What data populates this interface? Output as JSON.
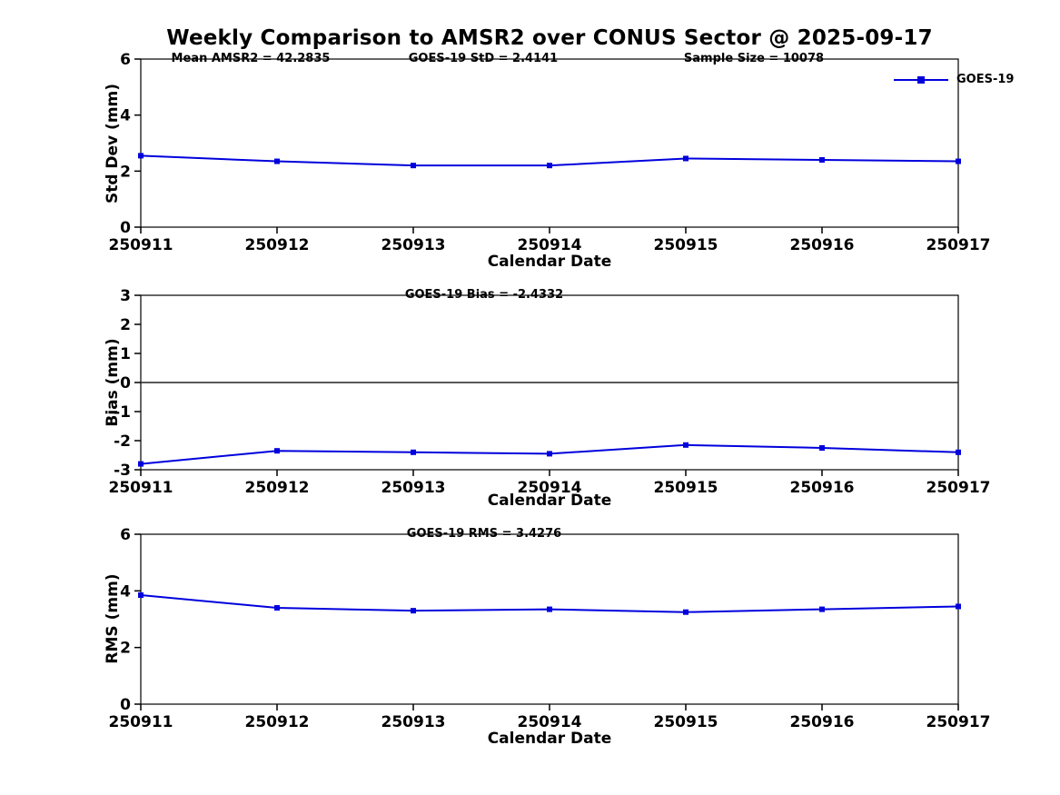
{
  "title": "Weekly Comparison to AMSR2 over CONUS Sector @ 2025-09-17",
  "accent_color": "#0000dd",
  "chart_data": [
    {
      "type": "line",
      "panel": "std-dev",
      "annotations": [
        "Mean AMSR2 = 42.2835",
        "GOES-19 StD = 2.4141",
        "Sample Size = 10078"
      ],
      "categories": [
        "250911",
        "250912",
        "250913",
        "250914",
        "250915",
        "250916",
        "250917"
      ],
      "series": [
        {
          "name": "GOES-19",
          "color": "#0000dd",
          "values": [
            2.55,
            2.35,
            2.2,
            2.2,
            2.45,
            2.4,
            2.35
          ]
        }
      ],
      "xlabel": "Calendar Date",
      "ylabel": "Std Dev (mm)",
      "ylim": [
        0,
        6
      ],
      "yticks": [
        0,
        2,
        4,
        6
      ],
      "grid": false,
      "zero_line": false,
      "legend": {
        "label": "GOES-19",
        "position": "top-right"
      }
    },
    {
      "type": "line",
      "panel": "bias",
      "annotations": [
        "GOES-19 Bias  = -2.4332"
      ],
      "categories": [
        "250911",
        "250912",
        "250913",
        "250914",
        "250915",
        "250916",
        "250917"
      ],
      "series": [
        {
          "name": "GOES-19",
          "color": "#0000dd",
          "values": [
            -2.8,
            -2.35,
            -2.4,
            -2.45,
            -2.15,
            -2.25,
            -2.4
          ]
        }
      ],
      "xlabel": "Calendar Date",
      "ylabel": "Bias (mm)",
      "ylim": [
        -3,
        3
      ],
      "yticks": [
        -3,
        -2,
        -1,
        0,
        1,
        2,
        3
      ],
      "grid": false,
      "zero_line": true
    },
    {
      "type": "line",
      "panel": "rms",
      "annotations": [
        "GOES-19 RMS = 3.4276"
      ],
      "categories": [
        "250911",
        "250912",
        "250913",
        "250914",
        "250915",
        "250916",
        "250917"
      ],
      "series": [
        {
          "name": "GOES-19",
          "color": "#0000dd",
          "values": [
            3.85,
            3.4,
            3.3,
            3.35,
            3.25,
            3.35,
            3.45
          ]
        }
      ],
      "xlabel": "Calendar Date",
      "ylabel": "RMS (mm)",
      "ylim": [
        0,
        6
      ],
      "yticks": [
        0,
        2,
        4,
        6
      ],
      "grid": false,
      "zero_line": false
    }
  ]
}
